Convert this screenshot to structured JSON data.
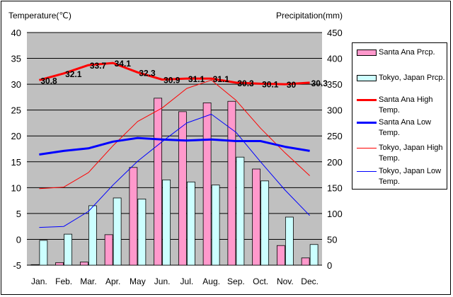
{
  "chart_data": {
    "type": "bar+line",
    "categories": [
      "Jan.",
      "Feb.",
      "Mar.",
      "Apr.",
      "May",
      "Jun.",
      "Jul.",
      "Aug.",
      "Sep.",
      "Oct.",
      "Nov.",
      "Dec."
    ],
    "left_axis": {
      "label": "Temperature(℃)",
      "ylim": [
        -5,
        40
      ],
      "ticks": [
        -5,
        0,
        5,
        10,
        15,
        20,
        25,
        30,
        35,
        40
      ]
    },
    "right_axis": {
      "label": "Precipitation(mm)",
      "ylim": [
        0,
        450
      ],
      "ticks": [
        0,
        50,
        100,
        150,
        200,
        250,
        300,
        350,
        400,
        450
      ]
    },
    "grid": true,
    "legend_position": "right",
    "series": [
      {
        "name": "Santa Ana Prcp.",
        "kind": "bar",
        "axis": "right",
        "color": "#ff99cc",
        "values": [
          1,
          5,
          6,
          59,
          189,
          323,
          297,
          314,
          317,
          186,
          38,
          14
        ]
      },
      {
        "name": "Tokyo, Japan Prcp.",
        "kind": "bar",
        "axis": "right",
        "color": "#ccffff",
        "values": [
          48,
          60,
          115,
          130,
          128,
          165,
          161,
          155,
          209,
          163,
          93,
          40
        ]
      },
      {
        "name": "Santa Ana High Temp.",
        "kind": "line",
        "axis": "left",
        "color": "#ff0000",
        "width": 3,
        "values": [
          30.8,
          32.1,
          33.7,
          34.1,
          32.3,
          30.9,
          31.1,
          31.1,
          30.3,
          30.1,
          30,
          30.3
        ],
        "labels": [
          "30.8",
          "32.1",
          "33.7",
          "34.1",
          "32.3",
          "30.9",
          "31.1",
          "31.1",
          "30.3",
          "30.1",
          "30",
          "30.3"
        ]
      },
      {
        "name": "Santa Ana Low Temp.",
        "kind": "line",
        "axis": "left",
        "color": "#0000ff",
        "width": 3,
        "values": [
          16.4,
          17.1,
          17.6,
          18.9,
          19.6,
          19.3,
          19.1,
          19.3,
          19,
          19,
          17.9,
          17.1
        ]
      },
      {
        "name": "Tokyo, Japan High Temp.",
        "kind": "line",
        "axis": "left",
        "color": "#ff0000",
        "width": 1,
        "values": [
          9.8,
          10.1,
          12.9,
          18.1,
          22.8,
          25.4,
          29.2,
          30.8,
          26.9,
          21.5,
          16.7,
          12.3
        ]
      },
      {
        "name": "Tokyo, Japan Low Temp.",
        "kind": "line",
        "axis": "left",
        "color": "#0000ff",
        "width": 1,
        "values": [
          2.3,
          2.5,
          5.4,
          10.5,
          15.1,
          18.9,
          22.5,
          24.2,
          20.7,
          15.0,
          9.5,
          4.6
        ]
      }
    ]
  },
  "legend": {
    "items": [
      {
        "label": "Santa Ana Prcp."
      },
      {
        "label": "Tokyo, Japan Prcp."
      },
      {
        "label": "Santa Ana High Temp."
      },
      {
        "label": "Santa Ana Low Temp."
      },
      {
        "label": "Tokyo, Japan High Temp."
      },
      {
        "label": "Tokyo, Japan Low Temp."
      }
    ]
  },
  "colors": {
    "plot_bg": "#c0c0c0",
    "grid": "#000000",
    "bar_stroke": "#000000"
  }
}
